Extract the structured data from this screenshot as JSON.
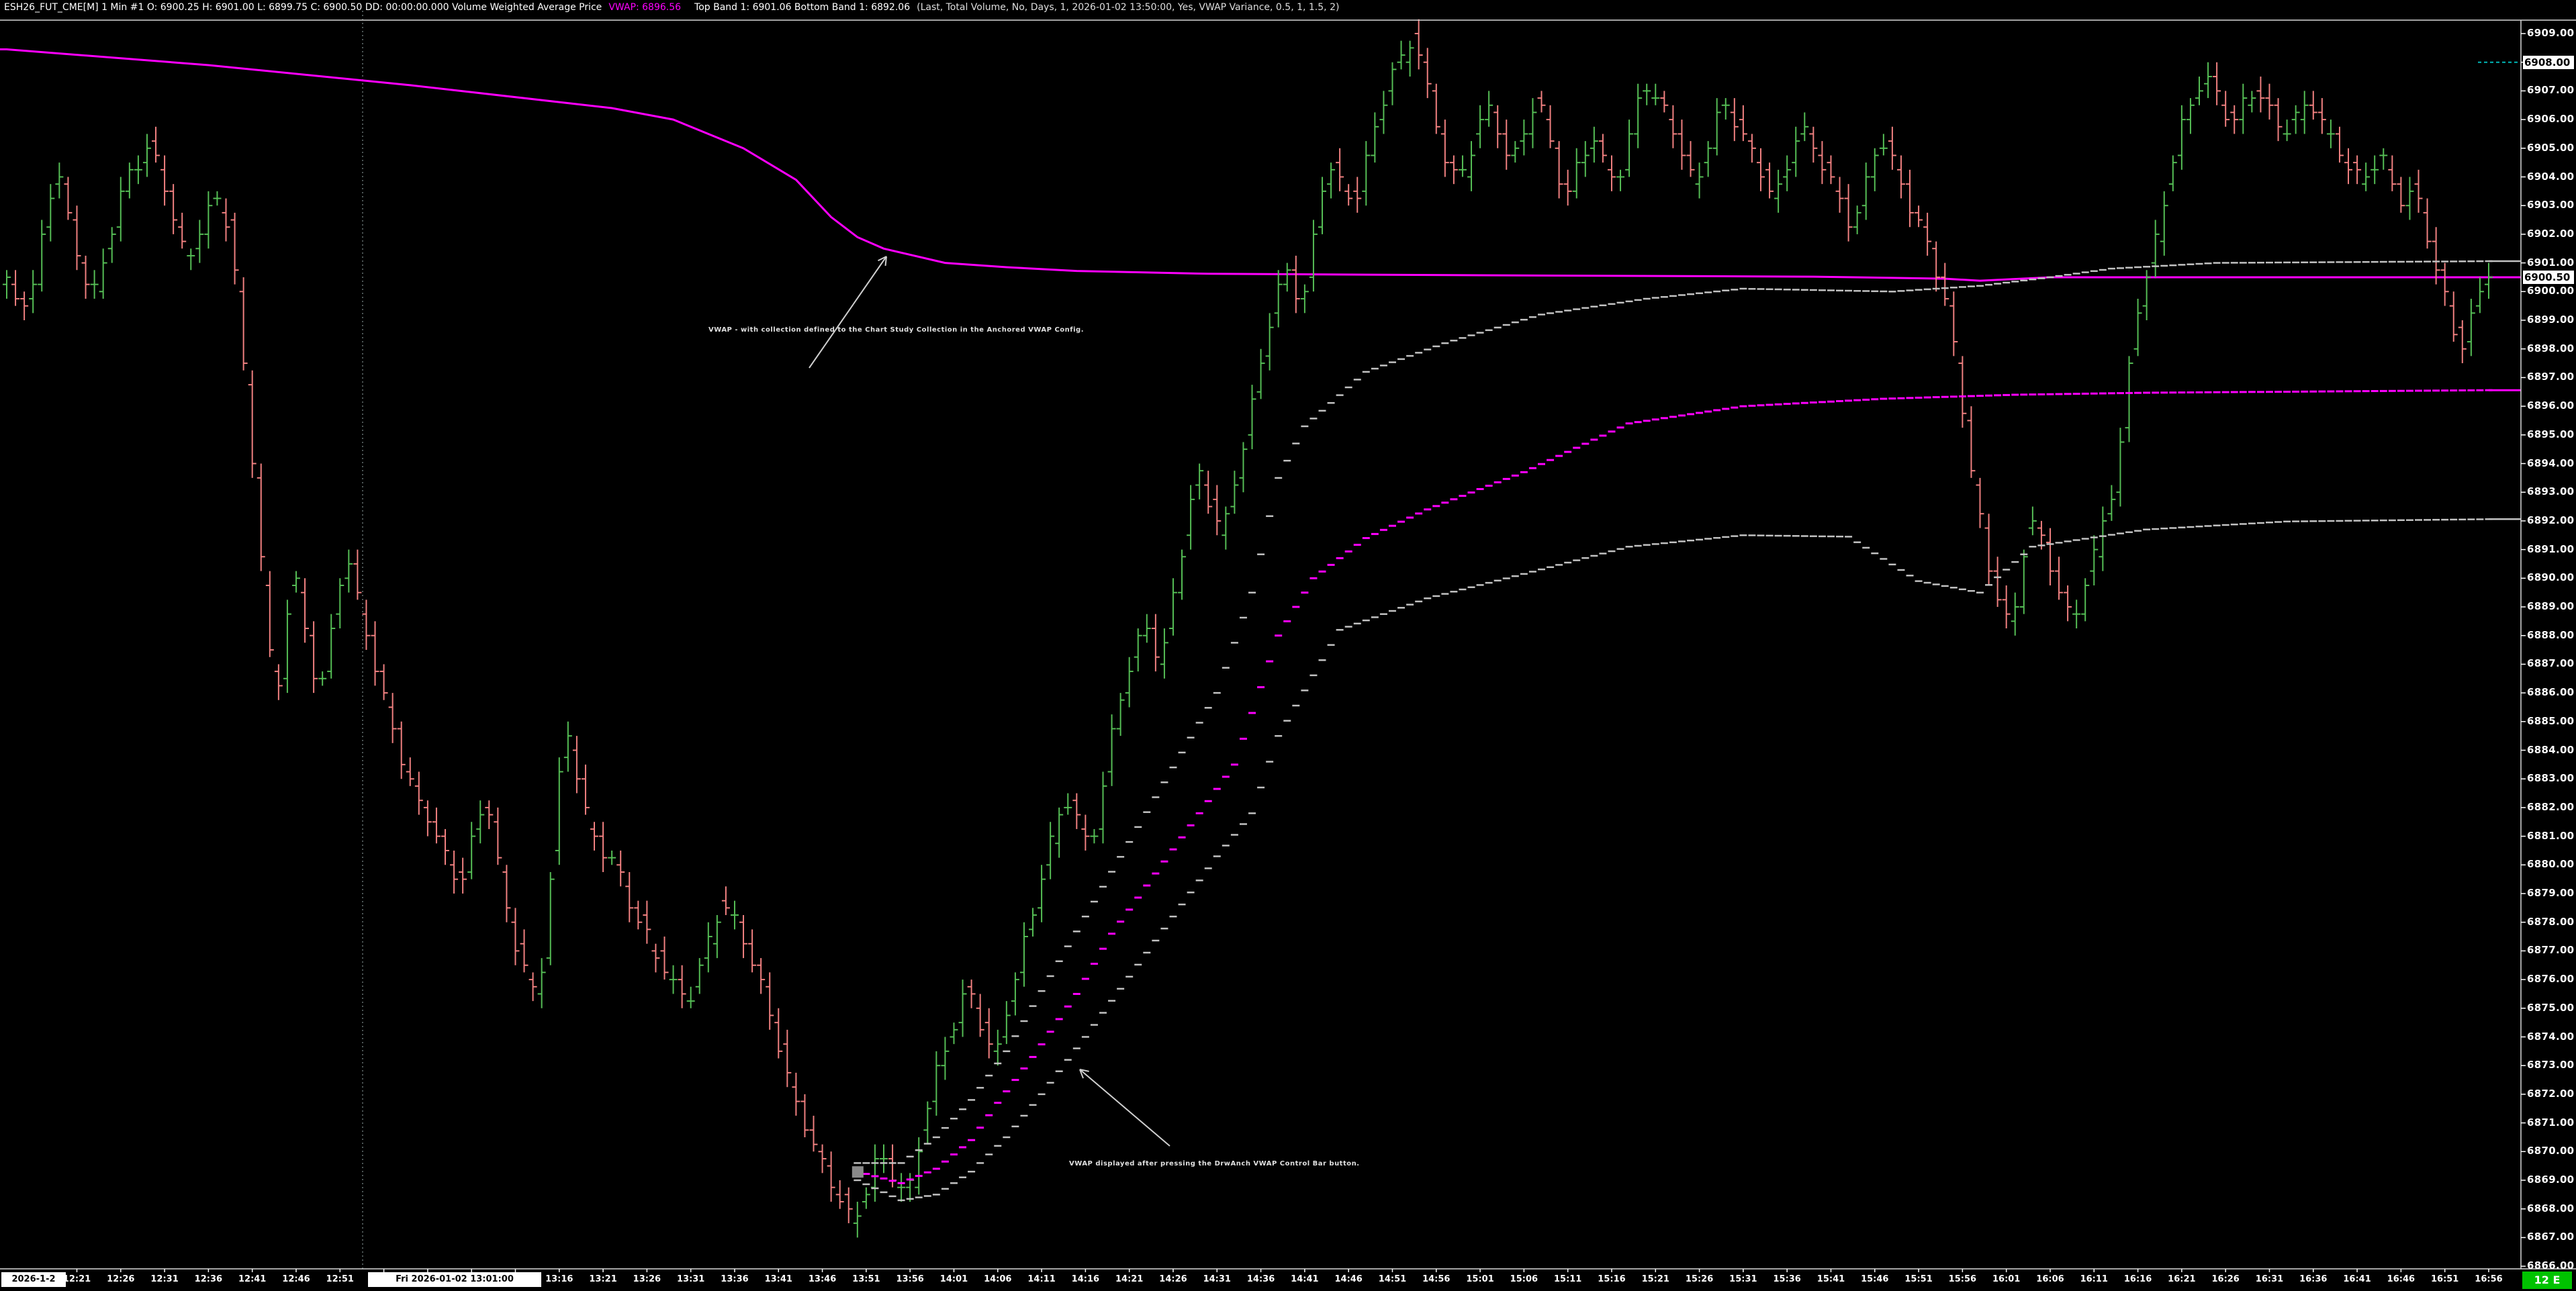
{
  "title_bar": {
    "left_part": "ESH26_FUT_CME[M]  1 Min  #1  O: 6900.25  H: 6901.00  L: 6899.75  C: 6900.50  DD: 00:00:00.000  Volume Weighted Average Price",
    "vwap_part": "VWAP: 6896.56",
    "bands_part": "Top Band 1: 6901.06  Bottom Band 1: 6892.06",
    "settings_part": "(Last, Total Volume, No, Days, 1, 2026-01-02  13:50:00, Yes, VWAP Variance, 0.5, 1, 1.5, 2)"
  },
  "annotations": {
    "collection": {
      "text": "VWAP - with collection defined to the Chart Study Collection in the Anchored VWAP Config."
    },
    "anchored": {
      "text": "VWAP displayed after pressing the DrwAnch VWAP Control Bar button."
    }
  },
  "time_axis": {
    "first_label": "2026-1-2",
    "date_box_label": "Fri 2026-01-02  13:01:00",
    "labels": [
      "12:21",
      "12:26",
      "12:31",
      "12:36",
      "12:41",
      "12:46",
      "12:51",
      "12:56",
      "13:01",
      "13:06",
      "13:11",
      "13:16",
      "13:21",
      "13:26",
      "13:31",
      "13:36",
      "13:41",
      "13:46",
      "13:51",
      "13:56",
      "14:01",
      "14:06",
      "14:11",
      "14:16",
      "14:21",
      "14:26",
      "14:31",
      "14:36",
      "14:41",
      "14:46",
      "14:51",
      "14:56",
      "15:01",
      "15:06",
      "15:11",
      "15:16",
      "15:21",
      "15:26",
      "15:31",
      "15:36",
      "15:41",
      "15:46",
      "15:51",
      "15:56",
      "16:01",
      "16:06",
      "16:11",
      "16:16",
      "16:21",
      "16:26",
      "16:31",
      "16:36",
      "16:41",
      "16:46",
      "16:51",
      "16:56"
    ]
  },
  "price_axis": {
    "labels": [
      "6909.00",
      "6908.00",
      "6907.00",
      "6906.00",
      "6905.00",
      "6904.00",
      "6903.00",
      "6902.00",
      "6901.00",
      "6900.00",
      "6899.00",
      "6898.00",
      "6897.00",
      "6896.00",
      "6895.00",
      "6894.00",
      "6893.00",
      "6892.00",
      "6891.00",
      "6890.00",
      "6889.00",
      "6888.00",
      "6887.00",
      "6886.00",
      "6885.00",
      "6884.00",
      "6883.00",
      "6882.00",
      "6881.00",
      "6880.00",
      "6879.00",
      "6878.00",
      "6877.00",
      "6876.00",
      "6875.00",
      "6874.00",
      "6873.00",
      "6872.00",
      "6871.00",
      "6870.00",
      "6869.00",
      "6868.00",
      "6867.00",
      "6866.00"
    ],
    "highlighted": [
      {
        "label": "6908.00",
        "price": 6908.0
      },
      {
        "label": "6900.50",
        "price": 6900.5
      }
    ]
  },
  "badge": {
    "label": "12 E"
  },
  "colors": {
    "up_bar": "#55bd55",
    "down_bar": "#f08080",
    "vwap_magenta": "#ff00ff",
    "band_gray": "#c2c2c2",
    "axis_line": "#d8d8d8",
    "crosshair": "#9aabab",
    "teal_marker": "#00b7b7",
    "badge_bg": "#00c300",
    "anchor_handle": "#8a8a8a",
    "arrow": "#cfcfcf"
  },
  "chart_data": {
    "type": "ohlc-bars",
    "symbol": "ESH26_FUT_CME[M]",
    "interval": "1 Min",
    "session_first_bar_time": "12:13",
    "bar_count": 284,
    "tick_size": 0.25,
    "ylim": [
      6866,
      6909
    ],
    "grid": false,
    "price_path_keyframes": [
      [
        0,
        6900.3
      ],
      [
        3,
        6899.4
      ],
      [
        6,
        6904.6
      ],
      [
        8,
        6901.8
      ],
      [
        10,
        6899.7
      ],
      [
        14,
        6903.9
      ],
      [
        17,
        6905.1
      ],
      [
        21,
        6900.9
      ],
      [
        24,
        6903.4
      ],
      [
        26,
        6902.0
      ],
      [
        28,
        6895.5
      ],
      [
        31,
        6885.2
      ],
      [
        33,
        6890.5
      ],
      [
        36,
        6885.8
      ],
      [
        39,
        6890.9
      ],
      [
        43,
        6886.2
      ],
      [
        46,
        6883.0
      ],
      [
        49,
        6881.3
      ],
      [
        52,
        6879.2
      ],
      [
        55,
        6882.5
      ],
      [
        58,
        6877.5
      ],
      [
        61,
        6875.0
      ],
      [
        64,
        6885.0
      ],
      [
        67,
        6881.0
      ],
      [
        70,
        6879.8
      ],
      [
        74,
        6877.0
      ],
      [
        78,
        6875.2
      ],
      [
        82,
        6878.8
      ],
      [
        86,
        6876.3
      ],
      [
        90,
        6872.0
      ],
      [
        94,
        6869.0
      ],
      [
        97,
        6867.6
      ],
      [
        100,
        6870.0
      ],
      [
        103,
        6868.2
      ],
      [
        106,
        6872.5
      ],
      [
        110,
        6875.8
      ],
      [
        113,
        6873.2
      ],
      [
        117,
        6878.0
      ],
      [
        121,
        6882.5
      ],
      [
        124,
        6880.5
      ],
      [
        127,
        6885.5
      ],
      [
        130,
        6888.5
      ],
      [
        132,
        6887.0
      ],
      [
        136,
        6893.8
      ],
      [
        139,
        6891.5
      ],
      [
        143,
        6897.0
      ],
      [
        146,
        6901.0
      ],
      [
        148,
        6899.5
      ],
      [
        151,
        6904.5
      ],
      [
        154,
        6903.0
      ],
      [
        158,
        6907.5
      ],
      [
        161,
        6908.9
      ],
      [
        164,
        6905.0
      ],
      [
        166,
        6903.8
      ],
      [
        169,
        6906.5
      ],
      [
        172,
        6904.5
      ],
      [
        175,
        6906.8
      ],
      [
        178,
        6903.2
      ],
      [
        181,
        6905.5
      ],
      [
        184,
        6903.6
      ],
      [
        187,
        6907.3
      ],
      [
        190,
        6906.0
      ],
      [
        193,
        6903.6
      ],
      [
        196,
        6906.8
      ],
      [
        199,
        6905.0
      ],
      [
        202,
        6903.2
      ],
      [
        205,
        6905.8
      ],
      [
        208,
        6904.0
      ],
      [
        211,
        6902.2
      ],
      [
        214,
        6905.5
      ],
      [
        217,
        6903.3
      ],
      [
        220,
        6901.2
      ],
      [
        222,
        6899.0
      ],
      [
        224,
        6894.5
      ],
      [
        226,
        6890.8
      ],
      [
        229,
        6888.0
      ],
      [
        231,
        6892.3
      ],
      [
        234,
        6890.0
      ],
      [
        236,
        6888.3
      ],
      [
        239,
        6891.5
      ],
      [
        241,
        6893.5
      ],
      [
        243,
        6899.0
      ],
      [
        245,
        6901.2
      ],
      [
        248,
        6905.5
      ],
      [
        251,
        6907.6
      ],
      [
        254,
        6905.8
      ],
      [
        257,
        6907.2
      ],
      [
        260,
        6905.5
      ],
      [
        263,
        6906.6
      ],
      [
        266,
        6905.0
      ],
      [
        269,
        6903.8
      ],
      [
        271,
        6904.8
      ],
      [
        273,
        6903.2
      ],
      [
        275,
        6903.6
      ],
      [
        277,
        6901.3
      ],
      [
        279,
        6899.2
      ],
      [
        280,
        6898.0
      ],
      [
        281,
        6898.6
      ],
      [
        282,
        6899.8
      ],
      [
        283,
        6900.5
      ]
    ],
    "last_bar": {
      "o": 6900.25,
      "h": 6901.0,
      "l": 6899.75,
      "c": 6900.5
    },
    "session_stats": {
      "high_marker": 6908.0,
      "last": 6900.5
    },
    "studies": {
      "collection_vwap": {
        "name": "VWAP (Chart Study Collection)",
        "points": [
          [
            0,
            6908.45
          ],
          [
            23,
            6907.9
          ],
          [
            46,
            6907.2
          ],
          [
            69,
            6906.4
          ],
          [
            76,
            6906.0
          ],
          [
            84,
            6905.0
          ],
          [
            90,
            6903.9
          ],
          [
            94,
            6902.6
          ],
          [
            97,
            6901.9
          ],
          [
            100,
            6901.5
          ],
          [
            107,
            6901.0
          ],
          [
            114,
            6900.85
          ],
          [
            122,
            6900.72
          ],
          [
            137,
            6900.62
          ],
          [
            168,
            6900.57
          ],
          [
            206,
            6900.52
          ],
          [
            221,
            6900.45
          ],
          [
            225,
            6900.38
          ],
          [
            233,
            6900.5
          ],
          [
            283,
            6900.5
          ]
        ]
      },
      "anchored_vwap": {
        "name": "Anchored VWAP (DrwAnch)",
        "anchor_minute": 97,
        "anchor_price": 6869.3,
        "vwap_value": 6896.56,
        "top_band_value": 6901.06,
        "bottom_band_value": 6892.06,
        "center": [
          [
            97,
            6869.3
          ],
          [
            102,
            6868.9
          ],
          [
            106,
            6869.4
          ],
          [
            110,
            6870.4
          ],
          [
            113,
            6871.7
          ],
          [
            117,
            6873.3
          ],
          [
            122,
            6875.5
          ],
          [
            126,
            6877.6
          ],
          [
            131,
            6879.7
          ],
          [
            136,
            6881.8
          ],
          [
            140,
            6883.5
          ],
          [
            145,
            6888.0
          ],
          [
            149,
            6890.0
          ],
          [
            155,
            6891.4
          ],
          [
            162,
            6892.4
          ],
          [
            173,
            6893.7
          ],
          [
            185,
            6895.4
          ],
          [
            198,
            6896.0
          ],
          [
            214,
            6896.26
          ],
          [
            229,
            6896.4
          ],
          [
            244,
            6896.47
          ],
          [
            283,
            6896.56
          ]
        ],
        "top_band": [
          [
            97,
            6869.6
          ],
          [
            102,
            6869.6
          ],
          [
            106,
            6870.5
          ],
          [
            110,
            6871.8
          ],
          [
            114,
            6873.5
          ],
          [
            118,
            6875.6
          ],
          [
            123,
            6878.2
          ],
          [
            128,
            6880.8
          ],
          [
            133,
            6883.4
          ],
          [
            138,
            6886.0
          ],
          [
            142,
            6889.5
          ],
          [
            145,
            6893.5
          ],
          [
            148,
            6895.3
          ],
          [
            155,
            6897.2
          ],
          [
            164,
            6898.2
          ],
          [
            175,
            6899.2
          ],
          [
            187,
            6899.75
          ],
          [
            198,
            6900.1
          ],
          [
            215,
            6900.0
          ],
          [
            225,
            6900.2
          ],
          [
            233,
            6900.5
          ],
          [
            240,
            6900.8
          ],
          [
            252,
            6901.0
          ],
          [
            283,
            6901.06
          ]
        ],
        "bottom_band": [
          [
            97,
            6869.0
          ],
          [
            102,
            6868.3
          ],
          [
            106,
            6868.5
          ],
          [
            110,
            6869.3
          ],
          [
            114,
            6870.5
          ],
          [
            118,
            6872.0
          ],
          [
            123,
            6874.0
          ],
          [
            128,
            6876.1
          ],
          [
            133,
            6878.2
          ],
          [
            138,
            6880.3
          ],
          [
            142,
            6881.8
          ],
          [
            145,
            6884.5
          ],
          [
            152,
            6888.2
          ],
          [
            162,
            6889.3
          ],
          [
            173,
            6890.15
          ],
          [
            185,
            6891.1
          ],
          [
            198,
            6891.5
          ],
          [
            210,
            6891.45
          ],
          [
            218,
            6889.9
          ],
          [
            225,
            6889.5
          ],
          [
            231,
            6891.1
          ],
          [
            244,
            6891.7
          ],
          [
            260,
            6891.98
          ],
          [
            283,
            6892.06
          ]
        ]
      }
    },
    "crosshair": {
      "x_minute": 40.6,
      "date_label": "Fri 2026-01-02  13:01:00"
    }
  }
}
